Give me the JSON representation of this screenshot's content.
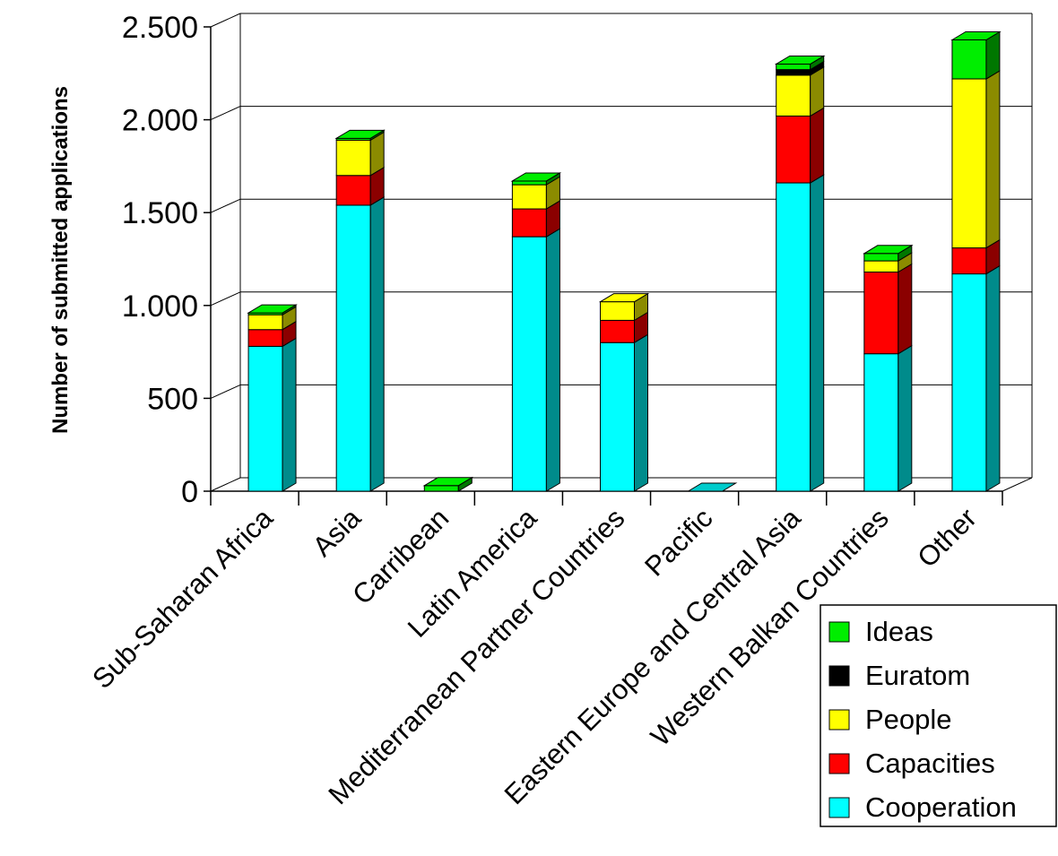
{
  "chart_data": {
    "type": "bar",
    "stacked": true,
    "three_d": true,
    "title": "",
    "xlabel": "",
    "ylabel": "Number of submitted applications",
    "ylim": [
      0,
      2500
    ],
    "yticks": [
      0,
      500,
      1000,
      1500,
      2000,
      2500
    ],
    "ytick_labels": [
      "0",
      "500",
      "1.000",
      "1.500",
      "2.000",
      "2.500"
    ],
    "grid": true,
    "legend_position": "bottom-right",
    "categories": [
      "Sub-Saharan Africa",
      "Asia",
      "Carribean",
      "Latin America",
      "Mediterranean Partner Countries",
      "Pacific",
      "Eastern Europe and Central Asia",
      "Western Balkan Countries",
      "Other"
    ],
    "series": [
      {
        "name": "Cooperation",
        "color": "#00ffff",
        "side_color": "#008b8b",
        "values": [
          780,
          1540,
          0,
          1370,
          800,
          0,
          1660,
          740,
          1170
        ]
      },
      {
        "name": "Capacities",
        "color": "#ff0000",
        "side_color": "#8b0000",
        "values": [
          90,
          160,
          0,
          150,
          120,
          0,
          360,
          440,
          140
        ]
      },
      {
        "name": "People",
        "color": "#ffff00",
        "side_color": "#8b8b00",
        "values": [
          80,
          190,
          0,
          130,
          100,
          0,
          220,
          60,
          910
        ]
      },
      {
        "name": "Euratom",
        "color": "#000000",
        "side_color": "#000000",
        "values": [
          0,
          0,
          0,
          0,
          0,
          0,
          30,
          0,
          0
        ]
      },
      {
        "name": "Ideas",
        "color": "#00ee00",
        "side_color": "#007700",
        "values": [
          10,
          10,
          30,
          20,
          0,
          0,
          30,
          40,
          210
        ]
      }
    ],
    "legend_order": [
      "Ideas",
      "Euratom",
      "People",
      "Capacities",
      "Cooperation"
    ]
  }
}
